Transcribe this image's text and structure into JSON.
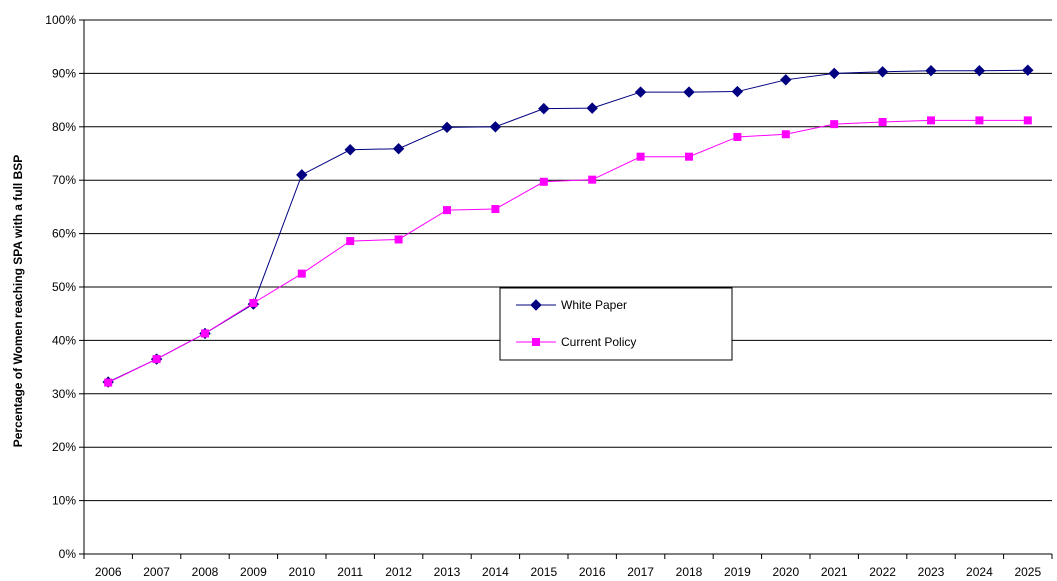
{
  "chart_data": {
    "type": "line",
    "title": "",
    "xlabel": "",
    "ylabel": "Percentage of Women reaching SPA with a full BSP",
    "x": [
      "2006",
      "2007",
      "2008",
      "2009",
      "2010",
      "2011",
      "2012",
      "2013",
      "2014",
      "2015",
      "2016",
      "2017",
      "2018",
      "2019",
      "2020",
      "2021",
      "2022",
      "2023",
      "2024",
      "2025"
    ],
    "ylim": [
      0,
      100
    ],
    "yticks": [
      "0%",
      "10%",
      "20%",
      "30%",
      "40%",
      "50%",
      "60%",
      "70%",
      "80%",
      "90%",
      "100%"
    ],
    "grid": "horizontal",
    "legend_position": "center-right",
    "series": [
      {
        "name": "White Paper",
        "color": "#000080",
        "marker": "diamond",
        "values": [
          32.2,
          36.5,
          41.3,
          46.8,
          71.0,
          75.7,
          75.9,
          79.9,
          80.0,
          83.4,
          83.5,
          86.5,
          86.5,
          86.6,
          88.8,
          90.0,
          90.3,
          90.5,
          90.5,
          90.6
        ]
      },
      {
        "name": "Current Policy",
        "color": "#FF00FF",
        "marker": "square",
        "values": [
          32.1,
          36.5,
          41.3,
          47.0,
          52.5,
          58.6,
          58.9,
          64.4,
          64.6,
          69.7,
          70.1,
          74.4,
          74.4,
          78.1,
          78.6,
          80.5,
          80.9,
          81.2,
          81.2,
          81.2
        ]
      }
    ]
  }
}
